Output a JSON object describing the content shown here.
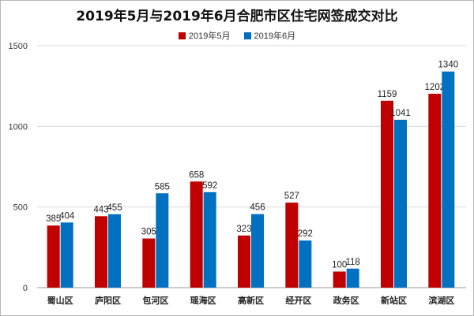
{
  "chart_data": {
    "type": "bar",
    "title": "2019年5月与2019年6月合肥市区住宅网签成交对比",
    "categories": [
      "蜀山区",
      "庐阳区",
      "包河区",
      "瑶海区",
      "高新区",
      "经开区",
      "政务区",
      "新站区",
      "滨湖区"
    ],
    "series": [
      {
        "name": "2019年5月",
        "color": "#c00000",
        "values": [
          385,
          443,
          305,
          658,
          323,
          527,
          100,
          1159,
          1202
        ]
      },
      {
        "name": "2019年6月",
        "color": "#0070c0",
        "values": [
          404,
          455,
          585,
          592,
          456,
          292,
          118,
          1041,
          1340
        ]
      }
    ],
    "ylim": [
      0,
      1500
    ],
    "yticks": [
      "0",
      "500",
      "1000",
      "1500"
    ],
    "grid": true,
    "legend_position": "top"
  }
}
